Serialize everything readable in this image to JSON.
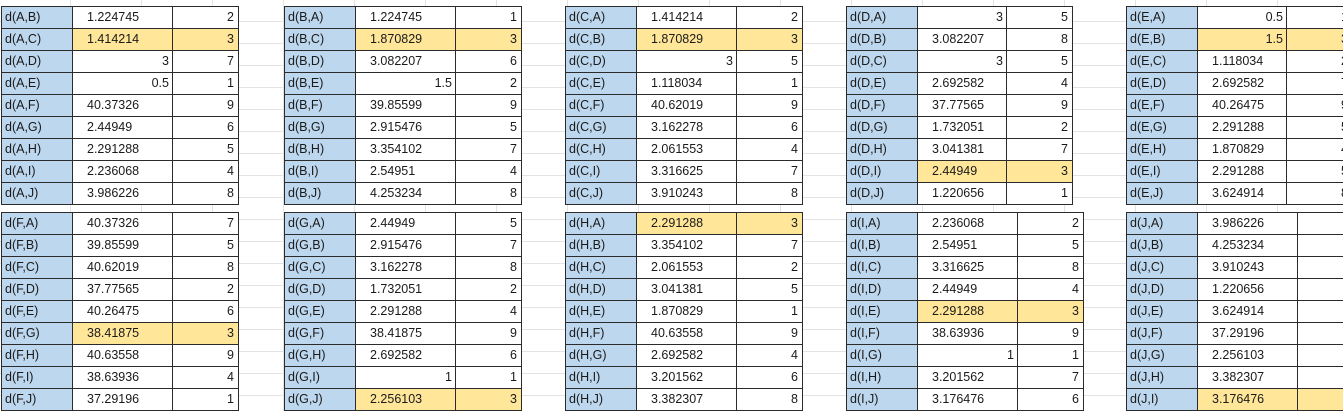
{
  "blocks": [
    {
      "rows": [
        {
          "k": "d(A,B)",
          "v": "1.224745",
          "r": "2",
          "hl": false
        },
        {
          "k": "d(A,C)",
          "v": "1.414214",
          "r": "3",
          "hl": true
        },
        {
          "k": "d(A,D)",
          "v": "3",
          "r": "7",
          "hl": false
        },
        {
          "k": "d(A,E)",
          "v": "0.5",
          "r": "1",
          "hl": false
        },
        {
          "k": "d(A,F)",
          "v": "40.37326",
          "r": "9",
          "hl": false
        },
        {
          "k": "d(A,G)",
          "v": "2.44949",
          "r": "6",
          "hl": false
        },
        {
          "k": "d(A,H)",
          "v": "2.291288",
          "r": "5",
          "hl": false
        },
        {
          "k": "d(A,I)",
          "v": "2.236068",
          "r": "4",
          "hl": false
        },
        {
          "k": "d(A,J)",
          "v": "3.986226",
          "r": "8",
          "hl": false
        }
      ]
    },
    {
      "rows": [
        {
          "k": "d(B,A)",
          "v": "1.224745",
          "r": "1",
          "hl": false
        },
        {
          "k": "d(B,C)",
          "v": "1.870829",
          "r": "3",
          "hl": true
        },
        {
          "k": "d(B,D)",
          "v": "3.082207",
          "r": "6",
          "hl": false
        },
        {
          "k": "d(B,E)",
          "v": "1.5",
          "r": "2",
          "hl": false
        },
        {
          "k": "d(B,F)",
          "v": "39.85599",
          "r": "9",
          "hl": false
        },
        {
          "k": "d(B,G)",
          "v": "2.915476",
          "r": "5",
          "hl": false
        },
        {
          "k": "d(B,H)",
          "v": "3.354102",
          "r": "7",
          "hl": false
        },
        {
          "k": "d(B,I)",
          "v": "2.54951",
          "r": "4",
          "hl": false
        },
        {
          "k": "d(B,J)",
          "v": "4.253234",
          "r": "8",
          "hl": false
        }
      ]
    },
    {
      "rows": [
        {
          "k": "d(C,A)",
          "v": "1.414214",
          "r": "2",
          "hl": false
        },
        {
          "k": "d(C,B)",
          "v": "1.870829",
          "r": "3",
          "hl": true
        },
        {
          "k": "d(C,D)",
          "v": "3",
          "r": "5",
          "hl": false
        },
        {
          "k": "d(C,E)",
          "v": "1.118034",
          "r": "1",
          "hl": false
        },
        {
          "k": "d(C,F)",
          "v": "40.62019",
          "r": "9",
          "hl": false
        },
        {
          "k": "d(C,G)",
          "v": "3.162278",
          "r": "6",
          "hl": false
        },
        {
          "k": "d(C,H)",
          "v": "2.061553",
          "r": "4",
          "hl": false
        },
        {
          "k": "d(C,I)",
          "v": "3.316625",
          "r": "7",
          "hl": false
        },
        {
          "k": "d(C,J)",
          "v": "3.910243",
          "r": "8",
          "hl": false
        }
      ]
    },
    {
      "rows": [
        {
          "k": "d(D,A)",
          "v": "3",
          "r": "5",
          "hl": false
        },
        {
          "k": "d(D,B)",
          "v": "3.082207",
          "r": "8",
          "hl": false
        },
        {
          "k": "d(D,C)",
          "v": "3",
          "r": "5",
          "hl": false
        },
        {
          "k": "d(D,E)",
          "v": "2.692582",
          "r": "4",
          "hl": false
        },
        {
          "k": "d(D,F)",
          "v": "37.77565",
          "r": "9",
          "hl": false
        },
        {
          "k": "d(D,G)",
          "v": "1.732051",
          "r": "2",
          "hl": false
        },
        {
          "k": "d(D,H)",
          "v": "3.041381",
          "r": "7",
          "hl": false
        },
        {
          "k": "d(D,I)",
          "v": "2.44949",
          "r": "3",
          "hl": true
        },
        {
          "k": "d(D,J)",
          "v": "1.220656",
          "r": "1",
          "hl": false
        }
      ]
    },
    {
      "rows": [
        {
          "k": "d(E,A)",
          "v": "0.5",
          "r": "1",
          "hl": false
        },
        {
          "k": "d(E,B)",
          "v": "1.5",
          "r": "3",
          "hl": true
        },
        {
          "k": "d(E,C)",
          "v": "1.118034",
          "r": "2",
          "hl": false
        },
        {
          "k": "d(E,D)",
          "v": "2.692582",
          "r": "7",
          "hl": false
        },
        {
          "k": "d(E,F)",
          "v": "40.26475",
          "r": "9",
          "hl": false
        },
        {
          "k": "d(E,G)",
          "v": "2.291288",
          "r": "5",
          "hl": false
        },
        {
          "k": "d(E,H)",
          "v": "1.870829",
          "r": "4",
          "hl": false
        },
        {
          "k": "d(E,I)",
          "v": "2.291288",
          "r": "5",
          "hl": false
        },
        {
          "k": "d(E,J)",
          "v": "3.624914",
          "r": "8",
          "hl": false
        }
      ]
    },
    {
      "rows": [
        {
          "k": "d(F,A)",
          "v": "40.37326",
          "r": "7",
          "hl": false
        },
        {
          "k": "d(F,B)",
          "v": "39.85599",
          "r": "5",
          "hl": false
        },
        {
          "k": "d(F,C)",
          "v": "40.62019",
          "r": "8",
          "hl": false
        },
        {
          "k": "d(F,D)",
          "v": "37.77565",
          "r": "2",
          "hl": false
        },
        {
          "k": "d(F,E)",
          "v": "40.26475",
          "r": "6",
          "hl": false
        },
        {
          "k": "d(F,G)",
          "v": "38.41875",
          "r": "3",
          "hl": true
        },
        {
          "k": "d(F,H)",
          "v": "40.63558",
          "r": "9",
          "hl": false
        },
        {
          "k": "d(F,I)",
          "v": "38.63936",
          "r": "4",
          "hl": false
        },
        {
          "k": "d(F,J)",
          "v": "37.29196",
          "r": "1",
          "hl": false
        }
      ]
    },
    {
      "rows": [
        {
          "k": "d(G,A)",
          "v": "2.44949",
          "r": "5",
          "hl": false
        },
        {
          "k": "d(G,B)",
          "v": "2.915476",
          "r": "7",
          "hl": false
        },
        {
          "k": "d(G,C)",
          "v": "3.162278",
          "r": "8",
          "hl": false
        },
        {
          "k": "d(G,D)",
          "v": "1.732051",
          "r": "2",
          "hl": false
        },
        {
          "k": "d(G,E)",
          "v": "2.291288",
          "r": "4",
          "hl": false
        },
        {
          "k": "d(G,F)",
          "v": "38.41875",
          "r": "9",
          "hl": false
        },
        {
          "k": "d(G,H)",
          "v": "2.692582",
          "r": "6",
          "hl": false
        },
        {
          "k": "d(G,I)",
          "v": "1",
          "r": "1",
          "hl": false
        },
        {
          "k": "d(G,J)",
          "v": "2.256103",
          "r": "3",
          "hl": true
        }
      ]
    },
    {
      "rows": [
        {
          "k": "d(H,A)",
          "v": "2.291288",
          "r": "3",
          "hl": true
        },
        {
          "k": "d(H,B)",
          "v": "3.354102",
          "r": "7",
          "hl": false
        },
        {
          "k": "d(H,C)",
          "v": "2.061553",
          "r": "2",
          "hl": false
        },
        {
          "k": "d(H,D)",
          "v": "3.041381",
          "r": "5",
          "hl": false
        },
        {
          "k": "d(H,E)",
          "v": "1.870829",
          "r": "1",
          "hl": false
        },
        {
          "k": "d(H,F)",
          "v": "40.63558",
          "r": "9",
          "hl": false
        },
        {
          "k": "d(H,G)",
          "v": "2.692582",
          "r": "4",
          "hl": false
        },
        {
          "k": "d(H,I)",
          "v": "3.201562",
          "r": "6",
          "hl": false
        },
        {
          "k": "d(H,J)",
          "v": "3.382307",
          "r": "8",
          "hl": false
        }
      ]
    },
    {
      "rows": [
        {
          "k": "d(I,A)",
          "v": "2.236068",
          "r": "2",
          "hl": false
        },
        {
          "k": "d(I,B)",
          "v": "2.54951",
          "r": "5",
          "hl": false
        },
        {
          "k": "d(I,C)",
          "v": "3.316625",
          "r": "8",
          "hl": false
        },
        {
          "k": "d(I,D)",
          "v": "2.44949",
          "r": "4",
          "hl": false
        },
        {
          "k": "d(I,E)",
          "v": "2.291288",
          "r": "3",
          "hl": true
        },
        {
          "k": "d(I,F)",
          "v": "38.63936",
          "r": "9",
          "hl": false
        },
        {
          "k": "d(I,G)",
          "v": "1",
          "r": "1",
          "hl": false
        },
        {
          "k": "d(I,H)",
          "v": "3.201562",
          "r": "7",
          "hl": false
        },
        {
          "k": "d(I,J)",
          "v": "3.176476",
          "r": "6",
          "hl": false
        }
      ]
    },
    {
      "rows": [
        {
          "k": "d(J,A)",
          "v": "3.986226",
          "r": "7",
          "hl": false
        },
        {
          "k": "d(J,B)",
          "v": "4.253234",
          "r": "8",
          "hl": false
        },
        {
          "k": "d(J,C)",
          "v": "3.910243",
          "r": "6",
          "hl": false
        },
        {
          "k": "d(J,D)",
          "v": "1.220656",
          "r": "1",
          "hl": false
        },
        {
          "k": "d(J,E)",
          "v": "3.624914",
          "r": "5",
          "hl": false
        },
        {
          "k": "d(J,F)",
          "v": "37.29196",
          "r": "9",
          "hl": false
        },
        {
          "k": "d(J,G)",
          "v": "2.256103",
          "r": "2",
          "hl": false
        },
        {
          "k": "d(J,H)",
          "v": "3.382307",
          "r": "4",
          "hl": false
        },
        {
          "k": "d(J,I)",
          "v": "3.176476",
          "r": "3",
          "hl": true
        }
      ]
    }
  ]
}
